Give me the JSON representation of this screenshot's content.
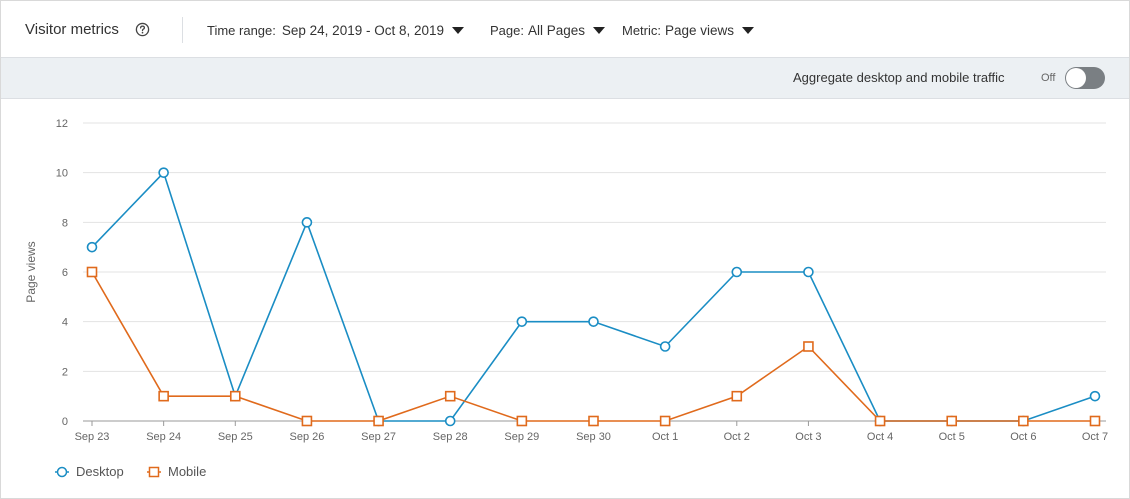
{
  "header": {
    "title": "Visitor metrics",
    "time_range_label": "Time range:",
    "time_range_value": "Sep 24, 2019 - Oct 8, 2019",
    "page_label": "Page:",
    "page_value": "All Pages",
    "metric_label": "Metric:",
    "metric_value": "Page views"
  },
  "subbar": {
    "aggregate_label": "Aggregate desktop and mobile traffic",
    "toggle_state": "Off"
  },
  "colors": {
    "desktop": "#1a8dc4",
    "mobile": "#e06a1c",
    "grid": "#e3e3e3",
    "axis": "#9a9a9a"
  },
  "icons": {
    "help": "help-circle-icon",
    "caret": "caret-down-icon",
    "desktop_marker": "circle-marker",
    "mobile_marker": "square-marker"
  },
  "chart_data": {
    "type": "line",
    "categories": [
      "Sep 23",
      "Sep 24",
      "Sep 25",
      "Sep 26",
      "Sep 27",
      "Sep 28",
      "Sep 29",
      "Sep 30",
      "Oct 1",
      "Oct 2",
      "Oct 3",
      "Oct 4",
      "Oct 5",
      "Oct 6",
      "Oct 7"
    ],
    "series": [
      {
        "name": "Desktop",
        "marker": "circle",
        "color": "#1a8dc4",
        "values": [
          7,
          10,
          1,
          8,
          0,
          0,
          4,
          4,
          3,
          6,
          6,
          0,
          0,
          0,
          1
        ]
      },
      {
        "name": "Mobile",
        "marker": "square",
        "color": "#e06a1c",
        "values": [
          6,
          1,
          1,
          0,
          0,
          1,
          0,
          0,
          0,
          1,
          3,
          0,
          0,
          0,
          0
        ]
      }
    ],
    "ylabel": "Page views",
    "ylim": [
      0,
      12
    ],
    "yticks": [
      0,
      2,
      4,
      6,
      8,
      10,
      12
    ],
    "grid": true,
    "legend": "bottom-left"
  }
}
